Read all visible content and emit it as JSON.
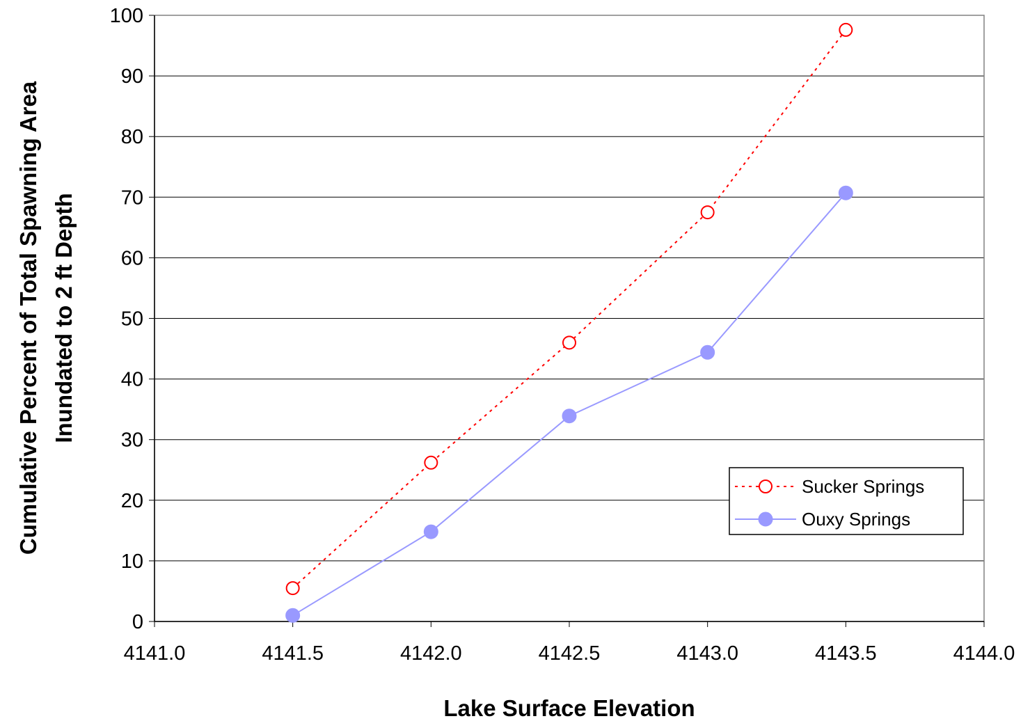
{
  "chart_data": {
    "type": "line",
    "title": "",
    "xlabel": "Lake Surface Elevation",
    "ylabel_lines": [
      "Cumulative Percent of Total Spawning Area",
      "Inundated to 2 ft Depth"
    ],
    "xlim": [
      4141.0,
      4144.0
    ],
    "ylim": [
      0,
      100
    ],
    "x_ticks": [
      "4141.0",
      "4141.5",
      "4142.0",
      "4142.5",
      "4143.0",
      "4143.5",
      "4144.0"
    ],
    "y_ticks": [
      "0",
      "10",
      "20",
      "30",
      "40",
      "50",
      "60",
      "70",
      "80",
      "90",
      "100"
    ],
    "grid": "horizontal",
    "legend_position": "lower-right",
    "series": [
      {
        "name": "Sucker Springs",
        "color": "#ff0000",
        "line_style": "dotted",
        "marker": "open-circle",
        "x": [
          4141.5,
          4142.0,
          4142.5,
          4143.0,
          4143.5
        ],
        "y": [
          5.5,
          26.2,
          46.0,
          67.5,
          97.6
        ]
      },
      {
        "name": "Ouxy Springs",
        "color": "#9999ff",
        "line_style": "solid",
        "marker": "filled-circle",
        "x": [
          4141.5,
          4142.0,
          4142.5,
          4143.0,
          4143.5
        ],
        "y": [
          1.0,
          14.8,
          33.9,
          44.4,
          70.7
        ]
      }
    ]
  }
}
